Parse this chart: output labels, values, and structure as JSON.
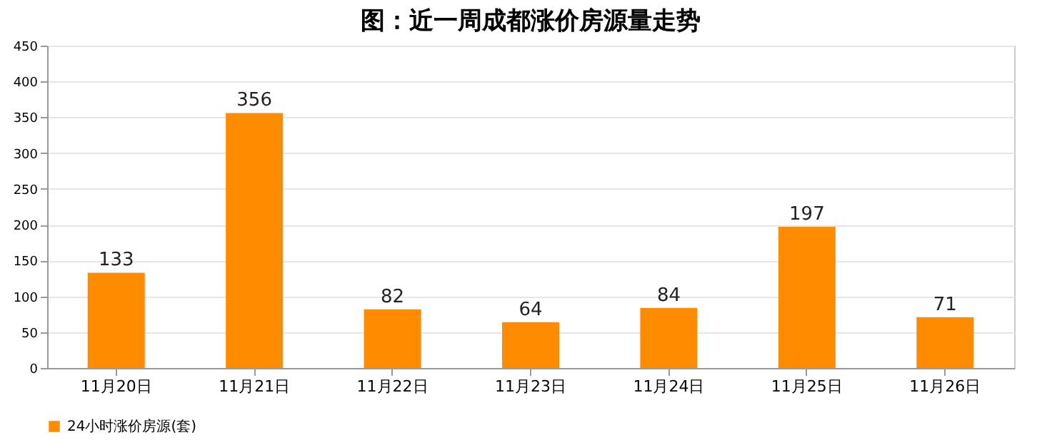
{
  "chart_data": {
    "type": "bar",
    "title": "图：近一周成都涨价房源量走势",
    "categories": [
      "11月20日",
      "11月21日",
      "11月22日",
      "11月23日",
      "11月24日",
      "11月25日",
      "11月26日"
    ],
    "series": [
      {
        "name": "24小时涨价房源(套)",
        "color": "#ff8c00",
        "values": [
          133,
          356,
          82,
          64,
          84,
          197,
          71
        ]
      }
    ],
    "ylim": [
      0,
      450
    ],
    "yticks": [
      0,
      50,
      100,
      150,
      200,
      250,
      300,
      350,
      400,
      450
    ],
    "grid": "y",
    "legend": "bottom",
    "data_labels": true
  }
}
